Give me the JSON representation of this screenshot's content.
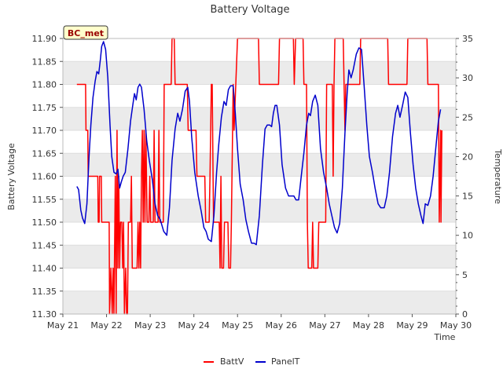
{
  "chart_data": {
    "type": "line",
    "title": "Battery Voltage",
    "badge": "BC_met",
    "xlabel": "Time",
    "ylabel_left": "Battery Voltage",
    "ylabel_right": "Temperature",
    "x_ticks": [
      "May 21",
      "May 22",
      "May 23",
      "May 24",
      "May 25",
      "May 26",
      "May 27",
      "May 28",
      "May 29",
      "May 30"
    ],
    "x_range_days": [
      21,
      30
    ],
    "ylim_left": [
      11.3,
      11.9
    ],
    "ylim_right": [
      0,
      35
    ],
    "y_ticks_left": [
      "11.30",
      "11.35",
      "11.40",
      "11.45",
      "11.50",
      "11.55",
      "11.60",
      "11.65",
      "11.70",
      "11.75",
      "11.80",
      "11.85",
      "11.90"
    ],
    "y_ticks_right": [
      "0",
      "5",
      "10",
      "15",
      "20",
      "25",
      "30",
      "35"
    ],
    "grid_bands": true,
    "colors": {
      "battv": "#ff0000",
      "panelt": "#0000cc",
      "band": "#ebebeb",
      "badge_bg": "#ffffcc",
      "badge_text": "#990000"
    },
    "legend": [
      {
        "name": "BattV",
        "color": "#ff0000"
      },
      {
        "name": "PanelT",
        "color": "#0000cc"
      }
    ],
    "series": [
      {
        "name": "BattV",
        "axis": "left",
        "points": [
          [
            21.32,
            11.8
          ],
          [
            21.52,
            11.8
          ],
          [
            21.53,
            11.7
          ],
          [
            21.57,
            11.7
          ],
          [
            21.58,
            11.6
          ],
          [
            21.8,
            11.6
          ],
          [
            21.81,
            11.5
          ],
          [
            21.83,
            11.5
          ],
          [
            21.84,
            11.6
          ],
          [
            21.88,
            11.6
          ],
          [
            21.89,
            11.5
          ],
          [
            22.06,
            11.5
          ],
          [
            22.07,
            11.3
          ],
          [
            22.1,
            11.4
          ],
          [
            22.13,
            11.3
          ],
          [
            22.15,
            11.4
          ],
          [
            22.17,
            11.3
          ],
          [
            22.2,
            11.6
          ],
          [
            22.22,
            11.3
          ],
          [
            22.24,
            11.7
          ],
          [
            22.26,
            11.4
          ],
          [
            22.28,
            11.6
          ],
          [
            22.3,
            11.4
          ],
          [
            22.32,
            11.5
          ],
          [
            22.35,
            11.5
          ],
          [
            22.37,
            11.4
          ],
          [
            22.39,
            11.5
          ],
          [
            22.41,
            11.3
          ],
          [
            22.44,
            11.4
          ],
          [
            22.46,
            11.3
          ],
          [
            22.48,
            11.3
          ],
          [
            22.5,
            11.5
          ],
          [
            22.55,
            11.5
          ],
          [
            22.57,
            11.6
          ],
          [
            22.59,
            11.4
          ],
          [
            22.7,
            11.4
          ],
          [
            22.72,
            11.5
          ],
          [
            22.74,
            11.4
          ],
          [
            22.76,
            11.5
          ],
          [
            22.78,
            11.4
          ],
          [
            22.8,
            11.6
          ],
          [
            22.82,
            11.7
          ],
          [
            22.84,
            11.5
          ],
          [
            22.86,
            11.7
          ],
          [
            22.88,
            11.5
          ],
          [
            22.9,
            11.7
          ],
          [
            22.93,
            11.5
          ],
          [
            22.97,
            11.5
          ],
          [
            22.99,
            11.6
          ],
          [
            23.01,
            11.5
          ],
          [
            23.07,
            11.5
          ],
          [
            23.09,
            11.7
          ],
          [
            23.11,
            11.5
          ],
          [
            23.18,
            11.5
          ],
          [
            23.2,
            11.7
          ],
          [
            23.22,
            11.5
          ],
          [
            23.3,
            11.5
          ],
          [
            23.32,
            11.8
          ],
          [
            23.48,
            11.8
          ],
          [
            23.5,
            11.9
          ],
          [
            23.55,
            11.9
          ],
          [
            23.57,
            11.8
          ],
          [
            23.85,
            11.8
          ],
          [
            23.87,
            11.7
          ],
          [
            24.05,
            11.7
          ],
          [
            24.07,
            11.6
          ],
          [
            24.25,
            11.6
          ],
          [
            24.27,
            11.5
          ],
          [
            24.35,
            11.5
          ],
          [
            24.37,
            11.6
          ],
          [
            24.4,
            11.8
          ],
          [
            24.42,
            11.8
          ],
          [
            24.44,
            11.6
          ],
          [
            24.45,
            11.5
          ],
          [
            24.58,
            11.5
          ],
          [
            24.6,
            11.4
          ],
          [
            24.62,
            11.6
          ],
          [
            24.64,
            11.4
          ],
          [
            24.68,
            11.4
          ],
          [
            24.7,
            11.5
          ],
          [
            24.78,
            11.5
          ],
          [
            24.8,
            11.4
          ],
          [
            24.84,
            11.4
          ],
          [
            24.86,
            11.5
          ],
          [
            24.9,
            11.8
          ],
          [
            24.92,
            11.7
          ],
          [
            24.96,
            11.8
          ],
          [
            25.0,
            11.9
          ],
          [
            25.48,
            11.9
          ],
          [
            25.5,
            11.8
          ],
          [
            25.94,
            11.8
          ],
          [
            25.96,
            11.9
          ],
          [
            26.28,
            11.9
          ],
          [
            26.3,
            11.8
          ],
          [
            26.33,
            11.9
          ],
          [
            26.5,
            11.9
          ],
          [
            26.52,
            11.8
          ],
          [
            26.58,
            11.8
          ],
          [
            26.6,
            11.5
          ],
          [
            26.62,
            11.4
          ],
          [
            26.7,
            11.4
          ],
          [
            26.72,
            11.5
          ],
          [
            26.74,
            11.4
          ],
          [
            26.84,
            11.4
          ],
          [
            26.86,
            11.5
          ],
          [
            26.92,
            11.5
          ],
          [
            27.02,
            11.5
          ],
          [
            27.04,
            11.8
          ],
          [
            27.17,
            11.8
          ],
          [
            27.19,
            11.6
          ],
          [
            27.21,
            11.8
          ],
          [
            27.23,
            11.9
          ],
          [
            27.42,
            11.9
          ],
          [
            27.44,
            11.8
          ],
          [
            27.46,
            11.7
          ],
          [
            27.48,
            11.8
          ],
          [
            27.8,
            11.8
          ],
          [
            27.82,
            11.9
          ],
          [
            28.44,
            11.9
          ],
          [
            28.46,
            11.8
          ],
          [
            28.88,
            11.8
          ],
          [
            28.9,
            11.9
          ],
          [
            29.34,
            11.9
          ],
          [
            29.36,
            11.8
          ],
          [
            29.6,
            11.8
          ],
          [
            29.62,
            11.5
          ],
          [
            29.65,
            11.7
          ],
          [
            29.66,
            11.5
          ],
          [
            29.68,
            11.7
          ]
        ]
      },
      {
        "name": "PanelT",
        "axis": "right",
        "points": [
          [
            21.32,
            16.2
          ],
          [
            21.36,
            15.8
          ],
          [
            21.41,
            13.2
          ],
          [
            21.45,
            12.2
          ],
          [
            21.5,
            11.5
          ],
          [
            21.55,
            14.0
          ],
          [
            21.6,
            20.0
          ],
          [
            21.64,
            24.0
          ],
          [
            21.69,
            27.5
          ],
          [
            21.74,
            29.6
          ],
          [
            21.78,
            30.8
          ],
          [
            21.82,
            30.5
          ],
          [
            21.86,
            32.4
          ],
          [
            21.89,
            34.0
          ],
          [
            21.93,
            34.6
          ],
          [
            21.98,
            33.6
          ],
          [
            22.03,
            30.0
          ],
          [
            22.08,
            24.0
          ],
          [
            22.12,
            20.0
          ],
          [
            22.17,
            18.0
          ],
          [
            22.22,
            17.8
          ],
          [
            22.26,
            18.4
          ],
          [
            22.3,
            16.0
          ],
          [
            22.34,
            16.8
          ],
          [
            22.38,
            17.5
          ],
          [
            22.43,
            18.0
          ],
          [
            22.49,
            21.0
          ],
          [
            22.55,
            24.5
          ],
          [
            22.6,
            26.5
          ],
          [
            22.64,
            28.0
          ],
          [
            22.68,
            27.2
          ],
          [
            22.72,
            28.8
          ],
          [
            22.76,
            29.2
          ],
          [
            22.8,
            28.8
          ],
          [
            22.86,
            26.0
          ],
          [
            22.92,
            22.0
          ],
          [
            22.98,
            19.5
          ],
          [
            23.05,
            17.0
          ],
          [
            23.11,
            14.0
          ],
          [
            23.17,
            12.5
          ],
          [
            23.23,
            12.0
          ],
          [
            23.31,
            10.5
          ],
          [
            23.38,
            10.0
          ],
          [
            23.44,
            13.5
          ],
          [
            23.5,
            19.5
          ],
          [
            23.57,
            23.5
          ],
          [
            23.63,
            25.5
          ],
          [
            23.68,
            24.5
          ],
          [
            23.74,
            26.0
          ],
          [
            23.8,
            28.3
          ],
          [
            23.86,
            28.8
          ],
          [
            23.9,
            27.0
          ],
          [
            23.95,
            22.5
          ],
          [
            24.02,
            18.0
          ],
          [
            24.1,
            15.0
          ],
          [
            24.17,
            13.0
          ],
          [
            24.23,
            11.0
          ],
          [
            24.28,
            10.5
          ],
          [
            24.33,
            9.5
          ],
          [
            24.4,
            9.2
          ],
          [
            24.46,
            12.5
          ],
          [
            24.52,
            18.0
          ],
          [
            24.57,
            21.5
          ],
          [
            24.63,
            25.0
          ],
          [
            24.69,
            27.0
          ],
          [
            24.74,
            26.5
          ],
          [
            24.79,
            28.5
          ],
          [
            24.84,
            29.0
          ],
          [
            24.9,
            29.0
          ],
          [
            24.95,
            25.5
          ],
          [
            25.0,
            21.0
          ],
          [
            25.06,
            16.5
          ],
          [
            25.13,
            14.5
          ],
          [
            25.19,
            12.0
          ],
          [
            25.25,
            10.5
          ],
          [
            25.32,
            9.0
          ],
          [
            25.38,
            9.0
          ],
          [
            25.43,
            8.8
          ],
          [
            25.5,
            12.5
          ],
          [
            25.57,
            19.0
          ],
          [
            25.63,
            23.5
          ],
          [
            25.68,
            24.0
          ],
          [
            25.74,
            24.0
          ],
          [
            25.78,
            23.8
          ],
          [
            25.82,
            25.5
          ],
          [
            25.86,
            26.5
          ],
          [
            25.9,
            26.5
          ],
          [
            25.96,
            24.0
          ],
          [
            26.02,
            19.0
          ],
          [
            26.1,
            16.0
          ],
          [
            26.17,
            15.0
          ],
          [
            26.23,
            15.0
          ],
          [
            26.29,
            15.0
          ],
          [
            26.34,
            14.5
          ],
          [
            26.4,
            14.5
          ],
          [
            26.46,
            17.5
          ],
          [
            26.52,
            20.5
          ],
          [
            26.58,
            24.0
          ],
          [
            26.63,
            25.5
          ],
          [
            26.67,
            25.2
          ],
          [
            26.72,
            27.0
          ],
          [
            26.78,
            27.8
          ],
          [
            26.84,
            26.5
          ],
          [
            26.9,
            21.0
          ],
          [
            26.97,
            18.0
          ],
          [
            27.04,
            16.0
          ],
          [
            27.1,
            14.0
          ],
          [
            27.16,
            12.5
          ],
          [
            27.22,
            11.0
          ],
          [
            27.28,
            10.3
          ],
          [
            27.34,
            11.5
          ],
          [
            27.4,
            16.0
          ],
          [
            27.46,
            23.0
          ],
          [
            27.51,
            28.0
          ],
          [
            27.55,
            31.0
          ],
          [
            27.6,
            30.0
          ],
          [
            27.65,
            31.0
          ],
          [
            27.72,
            33.0
          ],
          [
            27.78,
            33.8
          ],
          [
            27.84,
            33.6
          ],
          [
            27.9,
            29.0
          ],
          [
            27.96,
            24.0
          ],
          [
            28.02,
            20.0
          ],
          [
            28.09,
            18.0
          ],
          [
            28.15,
            16.0
          ],
          [
            28.22,
            14.0
          ],
          [
            28.28,
            13.5
          ],
          [
            28.36,
            13.5
          ],
          [
            28.42,
            15.0
          ],
          [
            28.48,
            18.0
          ],
          [
            28.55,
            22.5
          ],
          [
            28.62,
            25.5
          ],
          [
            28.67,
            26.5
          ],
          [
            28.72,
            25.0
          ],
          [
            28.78,
            26.5
          ],
          [
            28.84,
            28.2
          ],
          [
            28.9,
            27.5
          ],
          [
            28.96,
            23.0
          ],
          [
            29.02,
            19.0
          ],
          [
            29.08,
            16.0
          ],
          [
            29.14,
            14.0
          ],
          [
            29.2,
            12.5
          ],
          [
            29.25,
            11.5
          ],
          [
            29.3,
            14.0
          ],
          [
            29.36,
            13.8
          ],
          [
            29.42,
            15.0
          ],
          [
            29.48,
            17.5
          ],
          [
            29.54,
            21.0
          ],
          [
            29.6,
            24.5
          ],
          [
            29.65,
            26.0
          ]
        ]
      }
    ]
  }
}
